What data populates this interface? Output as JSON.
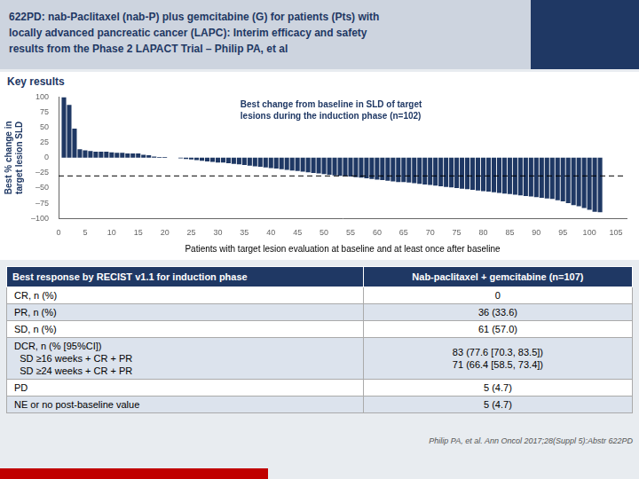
{
  "chart_data": {
    "type": "bar",
    "title": "622PD: nab-Paclitaxel (nab-P) plus gemcitabine (G) for patients (Pts) with\nlocally advanced pancreatic cancer (LAPC): Interim efficacy and safety\nresults from the Phase 2 LAPACT Trial – Philip PA, et al",
    "subtitle": "Key results",
    "annotation": "Best change from baseline in SLD of target\nlesions during the induction phase (n=102)",
    "xlabel": "Patients with target lesion evaluation at baseline and at least once after baseline",
    "ylabel": "Best % change in\ntarget lesion SLD",
    "color": "#1f3864",
    "x": [
      1,
      2,
      3,
      4,
      5,
      6,
      7,
      8,
      9,
      10,
      11,
      12,
      13,
      14,
      15,
      16,
      17,
      18,
      19,
      20,
      21,
      22,
      23,
      24,
      25,
      26,
      27,
      28,
      29,
      30,
      31,
      32,
      33,
      34,
      35,
      36,
      37,
      38,
      39,
      40,
      41,
      42,
      43,
      44,
      45,
      46,
      47,
      48,
      49,
      50,
      51,
      52,
      53,
      54,
      55,
      56,
      57,
      58,
      59,
      60,
      61,
      62,
      63,
      64,
      65,
      66,
      67,
      68,
      69,
      70,
      71,
      72,
      73,
      74,
      75,
      76,
      77,
      78,
      79,
      80,
      81,
      82,
      83,
      84,
      85,
      86,
      87,
      88,
      89,
      90,
      91,
      92,
      93,
      94,
      95,
      96,
      97,
      98,
      99,
      100,
      101,
      102
    ],
    "values": [
      100,
      87,
      48,
      14,
      12,
      11,
      10,
      10,
      10,
      9,
      8,
      8,
      7,
      7,
      7,
      5,
      4,
      2,
      1,
      1,
      0,
      0,
      -1,
      -2,
      -3,
      -4,
      -5,
      -6,
      -7,
      -8,
      -8,
      -9,
      -10,
      -11,
      -12,
      -13,
      -14,
      -15,
      -16,
      -17,
      -18,
      -19,
      -20,
      -21,
      -22,
      -23,
      -24,
      -25,
      -26,
      -27,
      -28,
      -29,
      -30,
      -30,
      -31,
      -32,
      -33,
      -34,
      -35,
      -36,
      -37,
      -38,
      -39,
      -40,
      -40,
      -41,
      -42,
      -43,
      -44,
      -45,
      -46,
      -47,
      -48,
      -49,
      -50,
      -51,
      -52,
      -53,
      -54,
      -55,
      -56,
      -57,
      -58,
      -59,
      -60,
      -61,
      -62,
      -63,
      -64,
      -65,
      -66,
      -67,
      -68,
      -70,
      -72,
      -75,
      -78,
      -80,
      -83,
      -86,
      -89,
      -90
    ],
    "threshold": -30,
    "xlim": [
      0,
      107
    ],
    "xticks": [
      0,
      5,
      10,
      15,
      20,
      25,
      30,
      35,
      40,
      45,
      50,
      55,
      60,
      65,
      70,
      75,
      80,
      85,
      90,
      95,
      100,
      105
    ],
    "ylim": [
      -100,
      100
    ],
    "yticks": [
      {
        "value": -100,
        "label": "–100"
      },
      {
        "value": -75,
        "label": "–75"
      },
      {
        "value": -50,
        "label": "–50"
      },
      {
        "value": -25,
        "label": "–25"
      },
      0,
      25,
      50,
      75,
      100
    ],
    "grid": false,
    "data_labels": false,
    "table": {
      "columns": [
        "Best response by RECIST v1.1 for induction phase",
        "Nab-paclitaxel + gemcitabine (n=107)"
      ],
      "rows": [
        [
          "CR, n (%)",
          "0"
        ],
        [
          "PR, n (%)",
          "36 (33.6)"
        ],
        [
          "SD, n (%)",
          "61 (57.0)"
        ],
        [
          "DCR, n (% [95%CI])\n  SD ≥16 weeks + CR + PR\n  SD ≥24 weeks + CR + PR",
          "83 (77.6 [70.3, 83.5])\n71 (66.4 [58.5, 73.4])"
        ],
        [
          "PD",
          "5 (4.7)"
        ],
        [
          "NE or no post-baseline value",
          "5 (4.7)"
        ]
      ]
    },
    "source": "Philip PA, et al. Ann Oncol 2017;28(Suppl 5):Abstr 622PD"
  }
}
